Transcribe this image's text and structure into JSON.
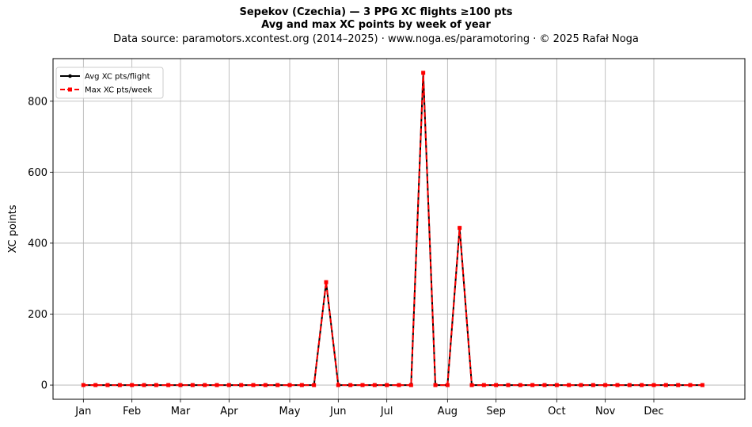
{
  "header": {
    "title": "Sepekov (Czechia)  —  3 PPG XC flights ≥100 pts",
    "subtitle": "Avg and max XC points by week of year",
    "source": "Data source: paramotors.xcontest.org (2014–2025)  ·  www.noga.es/paramotoring  ·  © 2025 Rafał Noga"
  },
  "chart_data": {
    "type": "line",
    "title": "Sepekov (Czechia)  —  3 PPG XC flights ≥100 pts",
    "subtitle": "Avg and max XC points by week of year",
    "xlabel": "",
    "ylabel": "XC points",
    "x_ticks": [
      {
        "week": 1,
        "label": "Jan"
      },
      {
        "week": 5,
        "label": "Feb"
      },
      {
        "week": 9,
        "label": "Mar"
      },
      {
        "week": 13,
        "label": "Apr"
      },
      {
        "week": 18,
        "label": "May"
      },
      {
        "week": 22,
        "label": "Jun"
      },
      {
        "week": 26,
        "label": "Jul"
      },
      {
        "week": 31,
        "label": "Aug"
      },
      {
        "week": 35,
        "label": "Sep"
      },
      {
        "week": 40,
        "label": "Oct"
      },
      {
        "week": 44,
        "label": "Nov"
      },
      {
        "week": 48,
        "label": "Dec"
      }
    ],
    "y_ticks": [
      0,
      200,
      400,
      600,
      800
    ],
    "xlim": [
      -1.5,
      55.5
    ],
    "ylim": [
      -40,
      920
    ],
    "grid": true,
    "legend_position": "top-left",
    "x": [
      1,
      2,
      3,
      4,
      5,
      6,
      7,
      8,
      9,
      10,
      11,
      12,
      13,
      14,
      15,
      16,
      17,
      18,
      19,
      20,
      21,
      22,
      23,
      24,
      25,
      26,
      27,
      28,
      29,
      30,
      31,
      32,
      33,
      34,
      35,
      36,
      37,
      38,
      39,
      40,
      41,
      42,
      43,
      44,
      45,
      46,
      47,
      48,
      49,
      50,
      51,
      52
    ],
    "series": [
      {
        "name": "Avg XC pts/flight",
        "color": "#000000",
        "marker": "circle",
        "line": "solid",
        "values": [
          0,
          0,
          0,
          0,
          0,
          0,
          0,
          0,
          0,
          0,
          0,
          0,
          0,
          0,
          0,
          0,
          0,
          0,
          0,
          0,
          290,
          0,
          0,
          0,
          0,
          0,
          0,
          0,
          880,
          0,
          0,
          443,
          0,
          0,
          0,
          0,
          0,
          0,
          0,
          0,
          0,
          0,
          0,
          0,
          0,
          0,
          0,
          0,
          0,
          0,
          0,
          0
        ]
      },
      {
        "name": "Max XC pts/week",
        "color": "#ff0000",
        "marker": "square",
        "line": "dashed",
        "values": [
          0,
          0,
          0,
          0,
          0,
          0,
          0,
          0,
          0,
          0,
          0,
          0,
          0,
          0,
          0,
          0,
          0,
          0,
          0,
          0,
          290,
          0,
          0,
          0,
          0,
          0,
          0,
          0,
          880,
          0,
          0,
          443,
          0,
          0,
          0,
          0,
          0,
          0,
          0,
          0,
          0,
          0,
          0,
          0,
          0,
          0,
          0,
          0,
          0,
          0,
          0,
          0
        ]
      }
    ]
  }
}
